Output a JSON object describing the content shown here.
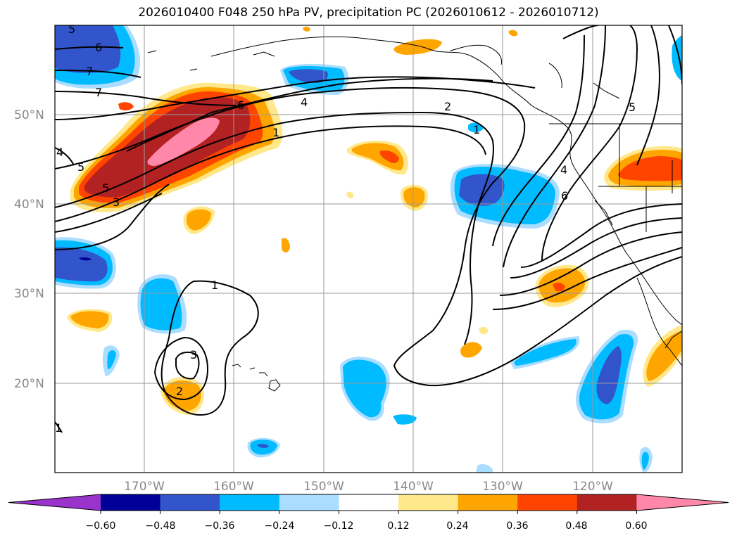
{
  "title": "2026010400 F048 250 hPa PV, precipitation PC (2026010612 - 2026010712)",
  "lat_labels": [
    "50°N",
    "40°N",
    "30°N",
    "20°N"
  ],
  "lon_labels": [
    "170°W",
    "160°W",
    "150°W",
    "140°W",
    "130°W",
    "120°W"
  ],
  "contour_labels": [
    "5",
    "6",
    "7",
    "7",
    "6",
    "4",
    "2",
    "1",
    "5",
    "5",
    "3",
    "1",
    "3",
    "2",
    "1",
    "4",
    "6",
    "5",
    "1",
    "4"
  ],
  "colorbar": {
    "ticks": [
      "−0.60",
      "−0.48",
      "−0.36",
      "−0.24",
      "−0.12",
      "0.12",
      "0.24",
      "0.36",
      "0.48",
      "0.60"
    ],
    "colors": [
      "#9933cc",
      "#000099",
      "#3355cc",
      "#00bbff",
      "#aaddff",
      "#ffffff",
      "#ffe88a",
      "#ffa500",
      "#ff4400",
      "#b22222",
      "#ff88aa"
    ]
  },
  "colors": {
    "blue_dark": "#3355cc",
    "blue_mid": "#00bbff",
    "blue_light": "#aaddff",
    "navy": "#000099",
    "yellow": "#ffe88a",
    "orange": "#ffa500",
    "red_orange": "#ff4400",
    "dark_red": "#b22222",
    "pink": "#ff88aa"
  }
}
